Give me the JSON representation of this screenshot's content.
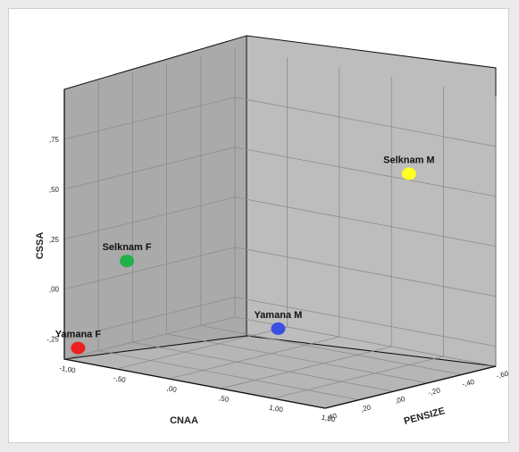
{
  "chart_data": {
    "type": "scatter",
    "title": "",
    "xlabel": "CNAA",
    "ylabel": "CSSA",
    "zlabel": "PENSIZE",
    "x_ticks": [
      "-1,00",
      "-,50",
      ",00",
      ",50",
      "1,00",
      "1,50"
    ],
    "y_ticks": [
      "-,25",
      ",00",
      ",25",
      ",50",
      ",75"
    ],
    "z_ticks": [
      "-,60",
      "-,40",
      "-,20",
      ",00",
      ",20",
      ",40"
    ],
    "xlim": [
      -1.0,
      1.5
    ],
    "ylim": [
      -0.35,
      1.0
    ],
    "zlim": [
      -0.6,
      0.4
    ],
    "grid": true,
    "points": [
      {
        "label": "Selknam M",
        "x": 0.75,
        "y": 0.55,
        "z": -0.55,
        "color": "#ffff22"
      },
      {
        "label": "Selknam F",
        "x": -0.4,
        "y": 0.2,
        "z": 0.4,
        "color": "#22b04a"
      },
      {
        "label": "Yamana M",
        "x": 0.15,
        "y": -0.2,
        "z": -0.15,
        "color": "#3b4fe0"
      },
      {
        "label": "Yamana F",
        "x": -0.95,
        "y": -0.3,
        "z": 0.35,
        "color": "#ee1f1f"
      }
    ]
  }
}
